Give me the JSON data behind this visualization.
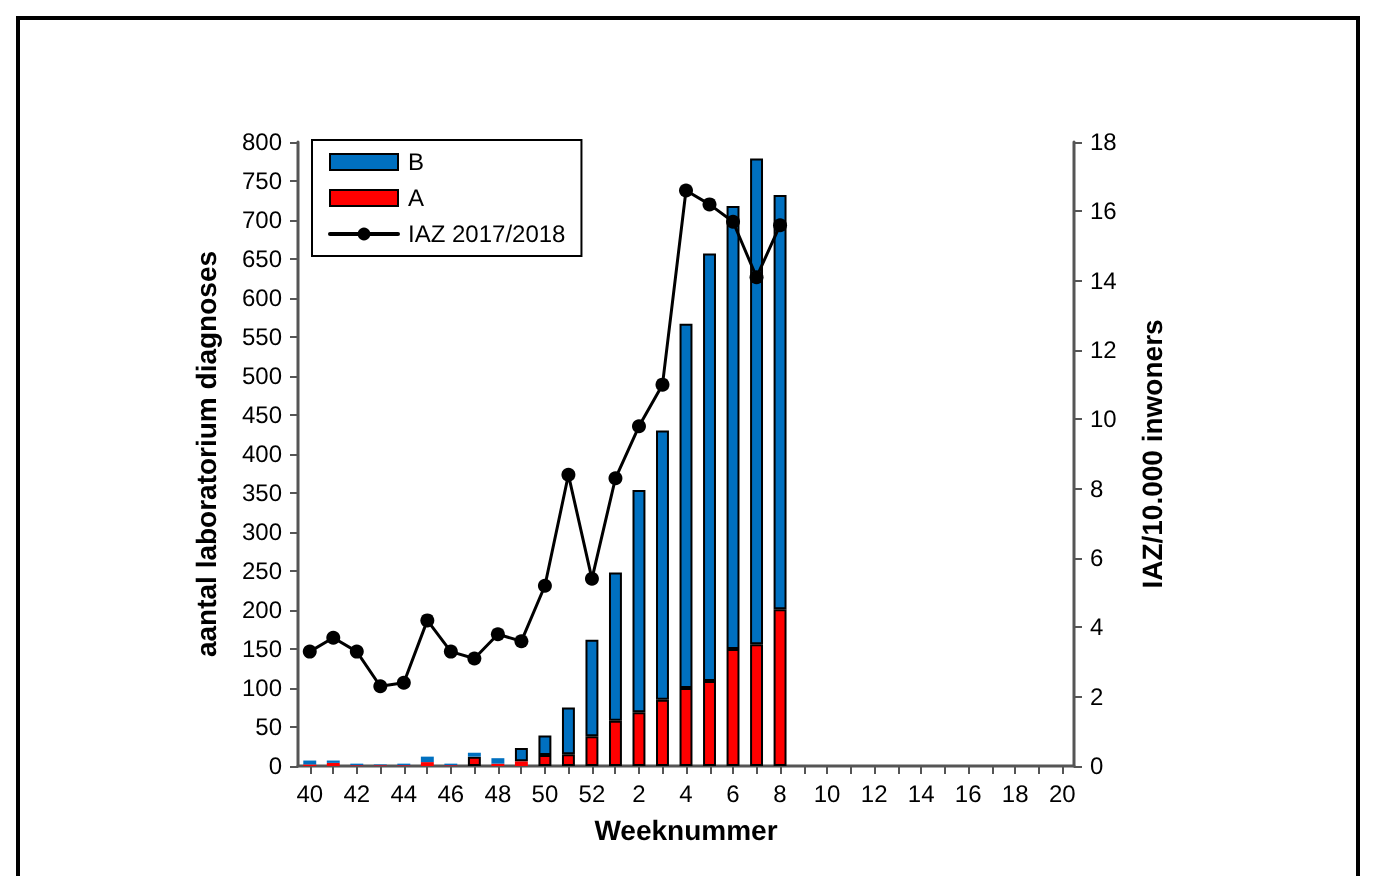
{
  "chart_data": {
    "type": "bar",
    "stacked": true,
    "xlabel": "Weeknummer",
    "ylabel": "aantal laboratorium diagnoses",
    "y2label": "IAZ/10.000 inwoners",
    "categories": [
      "40",
      null,
      "42",
      null,
      "44",
      null,
      "46",
      null,
      "48",
      null,
      "50",
      null,
      "52",
      null,
      "2",
      null,
      "4",
      null,
      "6",
      null,
      "8",
      null,
      "10",
      null,
      "12",
      null,
      "14",
      null,
      "16",
      null,
      "18",
      null,
      "20"
    ],
    "series": [
      {
        "name": "A",
        "color": "#ff0000",
        "values": [
          2,
          4,
          1,
          1,
          1,
          5,
          1,
          12,
          3,
          6,
          14,
          15,
          38,
          58,
          69,
          85,
          100,
          109,
          150,
          156,
          201,
          null,
          null,
          null,
          null,
          null,
          null,
          null,
          null,
          null,
          null,
          null,
          null
        ]
      },
      {
        "name": "B",
        "color": "#0070c0",
        "values": [
          5,
          3,
          2,
          1,
          2,
          7,
          2,
          5,
          7,
          17,
          25,
          60,
          124,
          190,
          285,
          345,
          467,
          548,
          568,
          623,
          531,
          null,
          null,
          null,
          null,
          null,
          null,
          null,
          null,
          null,
          null,
          null,
          null
        ]
      },
      {
        "name": "IAZ 2017/2018",
        "type": "line",
        "axis": "y2",
        "color": "#000000",
        "values": [
          3.3,
          3.7,
          3.3,
          2.3,
          2.4,
          4.2,
          3.3,
          3.1,
          3.8,
          3.6,
          5.2,
          8.4,
          5.4,
          8.3,
          9.8,
          11.0,
          16.6,
          16.2,
          15.7,
          14.1,
          15.6,
          null,
          null,
          null,
          null,
          null,
          null,
          null,
          null,
          null,
          null,
          null,
          null
        ]
      }
    ],
    "ylim": [
      0,
      800
    ],
    "yticks": [
      0,
      50,
      100,
      150,
      200,
      250,
      300,
      350,
      400,
      450,
      500,
      550,
      600,
      650,
      700,
      750,
      800
    ],
    "y2lim": [
      0,
      18
    ],
    "y2ticks": [
      0,
      2,
      4,
      6,
      8,
      10,
      12,
      14,
      16,
      18
    ],
    "legend": "top left",
    "grid": false,
    "marker": "circle",
    "line_style": "solid"
  }
}
